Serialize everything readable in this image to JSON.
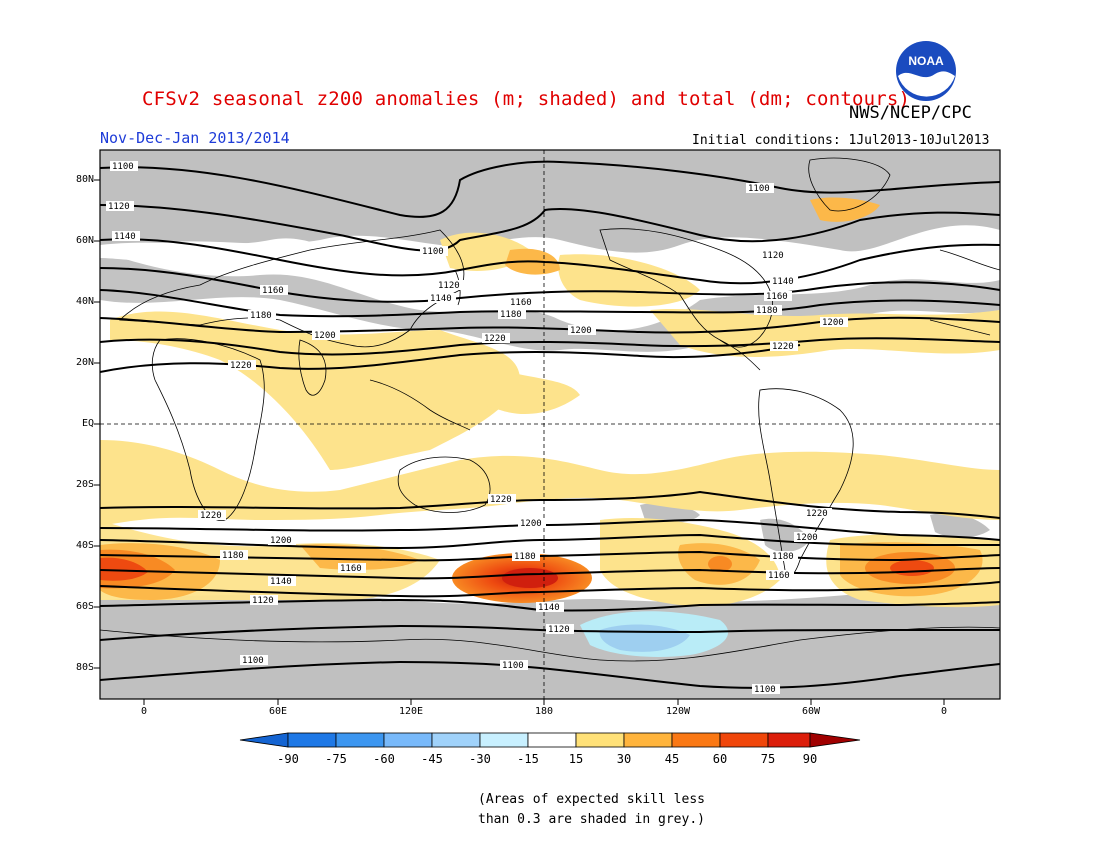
{
  "header": {
    "title": "CFSv2 seasonal z200 anomalies (m; shaded) and total (dm; contours)",
    "agency": "NWS/NCEP/CPC",
    "season": "Nov-Dec-Jan 2013/2014",
    "initial_conditions": "Initial conditions: 1Jul2013-10Jul2013",
    "logo_text": "NOAA"
  },
  "map": {
    "lat_labels": [
      "80N",
      "60N",
      "40N",
      "20N",
      "EQ",
      "20S",
      "40S",
      "60S",
      "80S"
    ],
    "lon_labels": [
      "0",
      "60E",
      "120E",
      "180",
      "120W",
      "60W",
      "0"
    ],
    "contour_labels": [
      "1100",
      "1120",
      "1140",
      "1160",
      "1180",
      "1200",
      "1220"
    ],
    "colors": {
      "grey_mask": "#c0c0c0",
      "anom_15_30": "#fde38c",
      "anom_30_45": "#fcb849",
      "anom_45_60": "#f88a23",
      "anom_60_75": "#ee4a10",
      "anom_75_90": "#d01f0e",
      "anom_neg_30_15": "#b9ecf7",
      "anom_neg_45_30": "#9ecff0"
    }
  },
  "colorbar": {
    "levels": [
      "-90",
      "-75",
      "-60",
      "-45",
      "-30",
      "-15",
      "15",
      "30",
      "45",
      "60",
      "75",
      "90"
    ],
    "colors": [
      "#1464d2",
      "#1e78e6",
      "#3c96f0",
      "#78b9fa",
      "#a0d2fa",
      "#c8f0ff",
      "#ffffff",
      "#ffe178",
      "#ffb43c",
      "#fa7814",
      "#f0460a",
      "#dc1e0a",
      "#a00000"
    ]
  },
  "notes": [
    "(Areas of expected skill less",
    "than 0.3 are shaded in grey.)"
  ]
}
